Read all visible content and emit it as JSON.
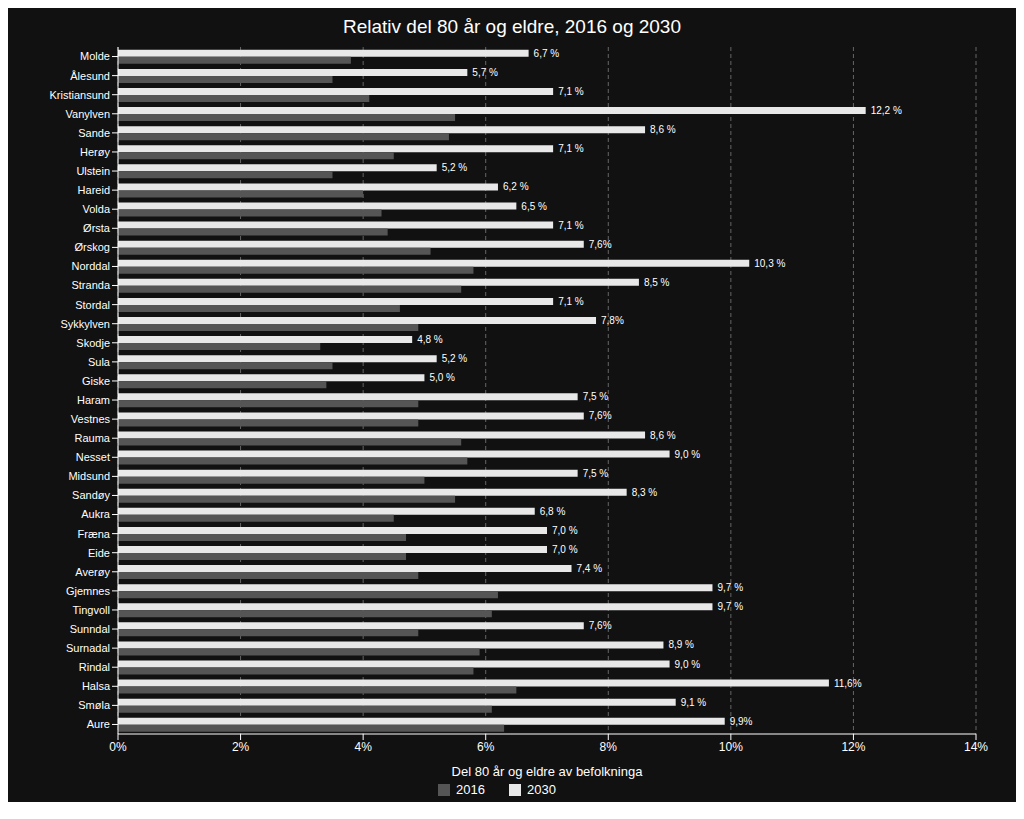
{
  "chart_data": {
    "type": "bar",
    "orientation": "horizontal",
    "title": "Relativ del 80 år og eldre, 2016 og 2030",
    "xlabel": "Del 80 år og eldre av befolkninga",
    "categories": [
      "Molde",
      "Ålesund",
      "Kristiansund",
      "Vanylven",
      "Sande",
      "Herøy",
      "Ulstein",
      "Hareid",
      "Volda",
      "Ørsta",
      "Ørskog",
      "Norddal",
      "Stranda",
      "Stordal",
      "Sykkylven",
      "Skodje",
      "Sula",
      "Giske",
      "Haram",
      "Vestnes",
      "Rauma",
      "Nesset",
      "Midsund",
      "Sandøy",
      "Aukra",
      "Fræna",
      "Eide",
      "Averøy",
      "Gjemnes",
      "Tingvoll",
      "Sunndal",
      "Surnadal",
      "Rindal",
      "Halsa",
      "Smøla",
      "Aure"
    ],
    "series": [
      {
        "name": "2016",
        "color": "#555555",
        "values": [
          3.8,
          3.5,
          4.1,
          5.5,
          5.4,
          4.5,
          3.5,
          4.0,
          4.3,
          4.4,
          5.1,
          5.8,
          5.6,
          4.6,
          4.9,
          3.3,
          3.5,
          3.4,
          4.9,
          4.9,
          5.6,
          5.7,
          5.0,
          5.5,
          4.5,
          4.7,
          4.7,
          4.9,
          6.2,
          6.1,
          4.9,
          5.9,
          5.8,
          6.5,
          6.1,
          6.3
        ]
      },
      {
        "name": "2030",
        "color": "#e8e8e8",
        "data_labels": true,
        "values": [
          6.7,
          5.7,
          7.1,
          12.2,
          8.6,
          7.1,
          5.2,
          6.2,
          6.5,
          7.1,
          7.6,
          10.3,
          8.5,
          7.1,
          7.8,
          4.8,
          5.2,
          5.0,
          7.5,
          7.6,
          8.6,
          9.0,
          7.5,
          8.3,
          6.8,
          7.0,
          7.0,
          7.4,
          9.7,
          9.7,
          7.6,
          8.9,
          9.0,
          11.6,
          9.1,
          9.9
        ],
        "value_labels": [
          "6,7 %",
          "5,7 %",
          "7,1 %",
          "12,2 %",
          "8,6 %",
          "7,1 %",
          "5,2 %",
          "6,2 %",
          "6,5 %",
          "7,1 %",
          "7,6%",
          "10,3 %",
          "8,5 %",
          "7,1 %",
          "7,8%",
          "4,8 %",
          "5,2 %",
          "5,0 %",
          "7,5 %",
          "7,6%",
          "8,6 %",
          "9,0 %",
          "7,5 %",
          "8,3 %",
          "6,8 %",
          "7,0 %",
          "7,0 %",
          "7,4 %",
          "9,7 %",
          "9,7 %",
          "7,6%",
          "8,9 %",
          "9,0 %",
          "11,6%",
          "9,1 %",
          "9,9%"
        ]
      }
    ],
    "xlim": [
      0,
      14
    ],
    "xticks": [
      {
        "value": 0,
        "label": "0%"
      },
      {
        "value": 2,
        "label": "2%"
      },
      {
        "value": 4,
        "label": "4%"
      },
      {
        "value": 6,
        "label": "6%"
      },
      {
        "value": 8,
        "label": "8%"
      },
      {
        "value": 10,
        "label": "10%"
      },
      {
        "value": 12,
        "label": "12%"
      },
      {
        "value": 14,
        "label": "14%"
      }
    ],
    "grid": true,
    "legend": "bottom"
  }
}
